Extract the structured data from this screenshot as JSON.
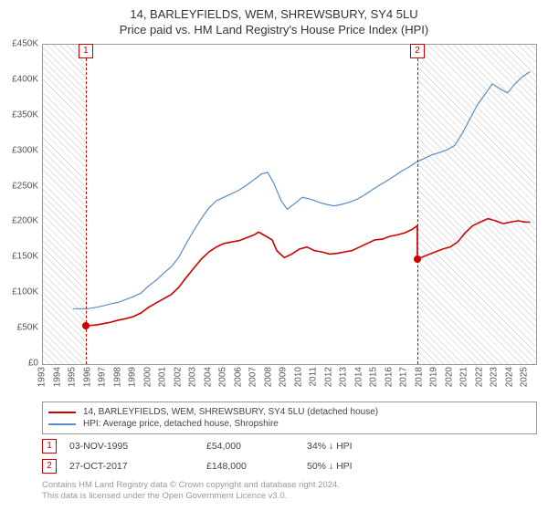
{
  "title": {
    "line1": "14, BARLEYFIELDS, WEM, SHREWSBURY, SY4 5LU",
    "line2": "Price paid vs. HM Land Registry's House Price Index (HPI)"
  },
  "chart": {
    "type": "line",
    "background_color": "#ffffff",
    "border_color": "#999999",
    "hatch_color": "rgba(153,153,153,0.3)",
    "x": {
      "min": 1993,
      "max": 2025.7,
      "ticks": [
        1993,
        1994,
        1995,
        1996,
        1997,
        1998,
        1999,
        2000,
        2001,
        2002,
        2003,
        2004,
        2005,
        2006,
        2007,
        2008,
        2009,
        2010,
        2011,
        2012,
        2013,
        2014,
        2015,
        2016,
        2017,
        2018,
        2019,
        2020,
        2021,
        2022,
        2023,
        2024,
        2025
      ]
    },
    "y": {
      "min": 0,
      "max": 450000,
      "ticks": [
        0,
        50000,
        100000,
        150000,
        200000,
        250000,
        300000,
        350000,
        400000,
        450000
      ],
      "tick_labels": [
        "£0",
        "£50K",
        "£100K",
        "£150K",
        "£200K",
        "£250K",
        "£300K",
        "£350K",
        "£400K",
        "£450K"
      ]
    },
    "series": [
      {
        "name": "14, BARLEYFIELDS, WEM, SHREWSBURY, SY4 5LU (detached house)",
        "color": "#cc0000",
        "width": 1.6,
        "data": [
          [
            1995.84,
            54000
          ],
          [
            1996.5,
            55000
          ],
          [
            1997.0,
            57000
          ],
          [
            1997.5,
            59000
          ],
          [
            1998.0,
            62000
          ],
          [
            1998.5,
            64000
          ],
          [
            1999.0,
            67000
          ],
          [
            1999.5,
            72000
          ],
          [
            2000.0,
            80000
          ],
          [
            2000.5,
            86000
          ],
          [
            2001.0,
            92000
          ],
          [
            2001.5,
            98000
          ],
          [
            2002.0,
            108000
          ],
          [
            2002.5,
            122000
          ],
          [
            2003.0,
            135000
          ],
          [
            2003.5,
            148000
          ],
          [
            2004.0,
            158000
          ],
          [
            2004.5,
            165000
          ],
          [
            2005.0,
            170000
          ],
          [
            2005.5,
            172000
          ],
          [
            2006.0,
            174000
          ],
          [
            2006.5,
            178000
          ],
          [
            2007.0,
            182000
          ],
          [
            2007.3,
            186000
          ],
          [
            2007.8,
            180000
          ],
          [
            2008.2,
            175000
          ],
          [
            2008.5,
            160000
          ],
          [
            2009.0,
            150000
          ],
          [
            2009.5,
            155000
          ],
          [
            2010.0,
            162000
          ],
          [
            2010.5,
            165000
          ],
          [
            2011.0,
            160000
          ],
          [
            2011.5,
            158000
          ],
          [
            2012.0,
            155000
          ],
          [
            2012.5,
            156000
          ],
          [
            2013.0,
            158000
          ],
          [
            2013.5,
            160000
          ],
          [
            2014.0,
            165000
          ],
          [
            2014.5,
            170000
          ],
          [
            2015.0,
            175000
          ],
          [
            2015.5,
            176000
          ],
          [
            2016.0,
            180000
          ],
          [
            2016.5,
            182000
          ],
          [
            2017.0,
            185000
          ],
          [
            2017.5,
            190000
          ],
          [
            2017.82,
            195000
          ],
          [
            2017.83,
            148000
          ],
          [
            2018.3,
            152000
          ],
          [
            2019.0,
            158000
          ],
          [
            2019.5,
            162000
          ],
          [
            2020.0,
            165000
          ],
          [
            2020.5,
            172000
          ],
          [
            2021.0,
            185000
          ],
          [
            2021.5,
            195000
          ],
          [
            2022.0,
            200000
          ],
          [
            2022.5,
            205000
          ],
          [
            2023.0,
            202000
          ],
          [
            2023.5,
            198000
          ],
          [
            2024.0,
            200000
          ],
          [
            2024.5,
            202000
          ],
          [
            2025.0,
            200000
          ],
          [
            2025.3,
            200000
          ]
        ]
      },
      {
        "name": "HPI: Average price, detached house, Shropshire",
        "color": "#5b8cc5",
        "width": 1.2,
        "data": [
          [
            1995.0,
            78000
          ],
          [
            1995.5,
            78000
          ],
          [
            1996.0,
            78000
          ],
          [
            1996.5,
            80000
          ],
          [
            1997.0,
            82000
          ],
          [
            1997.5,
            85000
          ],
          [
            1998.0,
            87000
          ],
          [
            1998.5,
            91000
          ],
          [
            1999.0,
            95000
          ],
          [
            1999.5,
            100000
          ],
          [
            2000.0,
            110000
          ],
          [
            2000.5,
            118000
          ],
          [
            2001.0,
            128000
          ],
          [
            2001.5,
            137000
          ],
          [
            2002.0,
            150000
          ],
          [
            2002.5,
            170000
          ],
          [
            2003.0,
            188000
          ],
          [
            2003.5,
            205000
          ],
          [
            2004.0,
            220000
          ],
          [
            2004.5,
            230000
          ],
          [
            2005.0,
            235000
          ],
          [
            2005.5,
            240000
          ],
          [
            2006.0,
            245000
          ],
          [
            2006.5,
            252000
          ],
          [
            2007.0,
            260000
          ],
          [
            2007.5,
            268000
          ],
          [
            2007.9,
            270000
          ],
          [
            2008.3,
            255000
          ],
          [
            2008.8,
            230000
          ],
          [
            2009.2,
            218000
          ],
          [
            2009.8,
            228000
          ],
          [
            2010.2,
            235000
          ],
          [
            2010.8,
            232000
          ],
          [
            2011.3,
            228000
          ],
          [
            2011.8,
            225000
          ],
          [
            2012.3,
            223000
          ],
          [
            2012.8,
            225000
          ],
          [
            2013.3,
            228000
          ],
          [
            2013.8,
            232000
          ],
          [
            2014.3,
            238000
          ],
          [
            2014.8,
            245000
          ],
          [
            2015.3,
            252000
          ],
          [
            2015.8,
            258000
          ],
          [
            2016.3,
            265000
          ],
          [
            2016.8,
            272000
          ],
          [
            2017.3,
            278000
          ],
          [
            2017.8,
            285000
          ],
          [
            2018.3,
            290000
          ],
          [
            2018.8,
            295000
          ],
          [
            2019.3,
            298000
          ],
          [
            2019.8,
            302000
          ],
          [
            2020.3,
            308000
          ],
          [
            2020.8,
            325000
          ],
          [
            2021.3,
            345000
          ],
          [
            2021.8,
            365000
          ],
          [
            2022.3,
            380000
          ],
          [
            2022.8,
            395000
          ],
          [
            2023.3,
            388000
          ],
          [
            2023.8,
            382000
          ],
          [
            2024.3,
            395000
          ],
          [
            2024.8,
            405000
          ],
          [
            2025.3,
            412000
          ]
        ]
      }
    ],
    "hatched_ranges": [
      {
        "from": 1993,
        "to": 1995.84
      },
      {
        "from": 2017.82,
        "to": 2025.7
      }
    ],
    "sale_markers": [
      {
        "idx": "1",
        "x": 1995.84,
        "y": 54000
      },
      {
        "idx": "2",
        "x": 2017.82,
        "y": 148000
      }
    ]
  },
  "legend": {
    "items": [
      {
        "color": "#cc0000",
        "label": "14, BARLEYFIELDS, WEM, SHREWSBURY, SY4 5LU (detached house)"
      },
      {
        "color": "#5b8cc5",
        "label": "HPI: Average price, detached house, Shropshire"
      }
    ]
  },
  "sales": [
    {
      "idx": "1",
      "date": "03-NOV-1995",
      "price": "£54,000",
      "delta": "34% ↓ HPI"
    },
    {
      "idx": "2",
      "date": "27-OCT-2017",
      "price": "£148,000",
      "delta": "50% ↓ HPI"
    }
  ],
  "footer": {
    "line1": "Contains HM Land Registry data © Crown copyright and database right 2024.",
    "line2": "This data is licensed under the Open Government Licence v3.0."
  }
}
